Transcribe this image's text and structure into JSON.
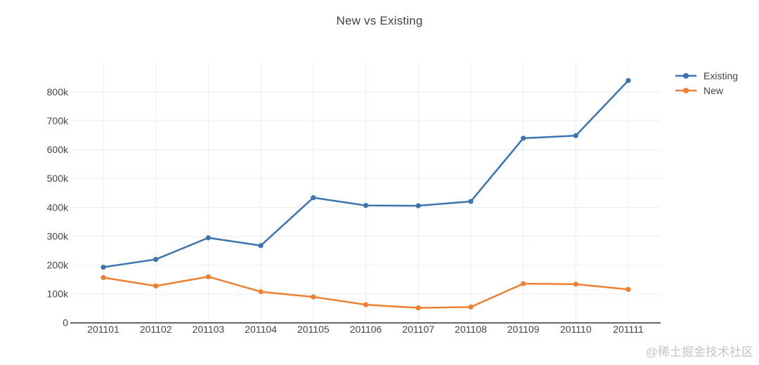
{
  "chart_data": {
    "type": "line",
    "title": "New vs Existing",
    "categories": [
      "201101",
      "201102",
      "201103",
      "201104",
      "201105",
      "201106",
      "201107",
      "201108",
      "201109",
      "201110",
      "201111"
    ],
    "series": [
      {
        "name": "Existing",
        "color": "#3c74b0",
        "values": [
          193000,
          220000,
          295000,
          268000,
          434000,
          407000,
          406000,
          421000,
          640000,
          649000,
          840000
        ]
      },
      {
        "name": "New",
        "color": "#ec8033",
        "values": [
          157000,
          128000,
          160000,
          108000,
          90000,
          63000,
          52000,
          55000,
          136000,
          134000,
          116000
        ]
      }
    ],
    "xlabel": "",
    "ylabel": "",
    "ylim": [
      0,
      905000
    ],
    "yticks": [
      0,
      100000,
      200000,
      300000,
      400000,
      500000,
      600000,
      700000,
      800000
    ],
    "ytick_labels": [
      "0",
      "100k",
      "200k",
      "300k",
      "400k",
      "500k",
      "600k",
      "700k",
      "800k"
    ],
    "grid": true,
    "legend_position": "top-right"
  },
  "watermark": {
    "text": "@稀土掘金技术社区"
  },
  "colors": {
    "background": "#ffffff",
    "grid": "#ecedf0",
    "axis_line": "#63676c",
    "tick_text": "#444444",
    "title_text": "#444444",
    "watermark_text": "#c4c4c4"
  }
}
